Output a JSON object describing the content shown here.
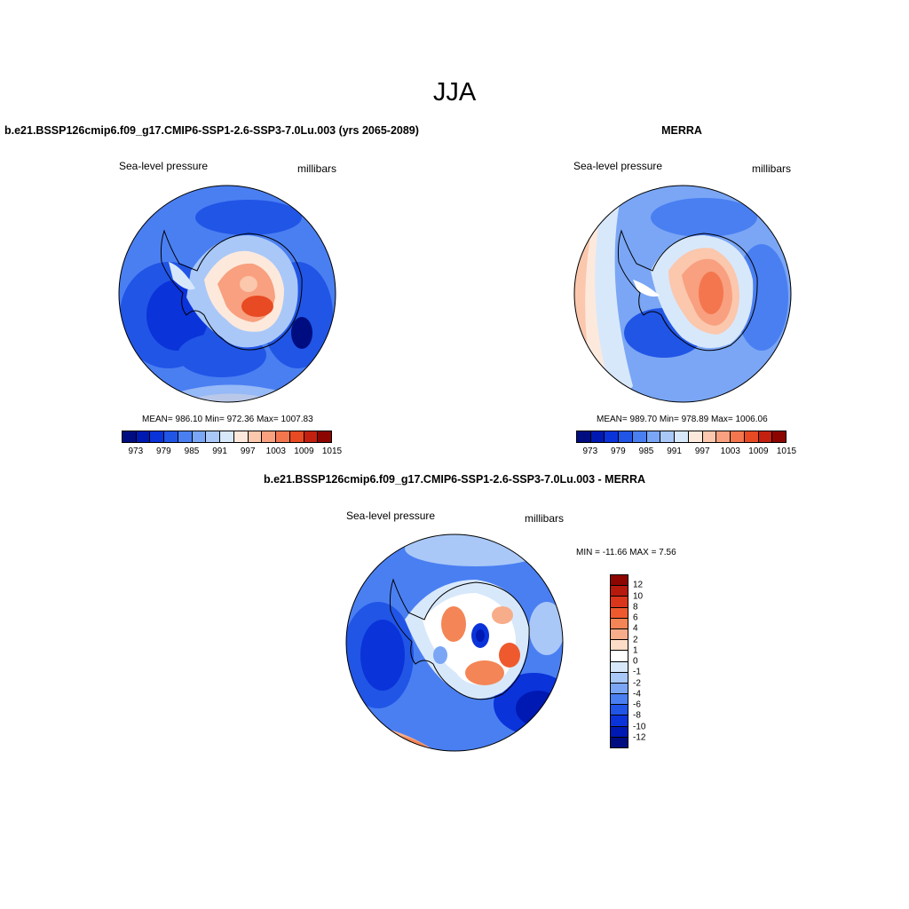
{
  "title": "JJA",
  "panels": [
    {
      "title": "b.e21.BSSP126cmip6.f09_g17.CMIP6-SSP1-2.6-SSP3-7.0Lu.003 (yrs 2065-2089)",
      "left_label": "Sea-level pressure",
      "right_label": "millibars",
      "stats": "MEAN= 986.10  Min= 972.36  Max= 1007.83",
      "colorbar_ticks": [
        "973",
        "979",
        "985",
        "991",
        "997",
        "1003",
        "1009",
        "1015"
      ]
    },
    {
      "title": "MERRA",
      "left_label": "Sea-level pressure",
      "right_label": "millibars",
      "stats": "MEAN= 989.70  Min= 978.89  Max= 1006.06",
      "colorbar_ticks": [
        "973",
        "979",
        "985",
        "991",
        "997",
        "1003",
        "1009",
        "1015"
      ]
    },
    {
      "title": "b.e21.BSSP126cmip6.f09_g17.CMIP6-SSP1-2.6-SSP3-7.0Lu.003 - MERRA",
      "left_label": "Sea-level pressure",
      "right_label": "millibars",
      "stats": "MIN = -11.66 MAX =   7.56",
      "colorbar_ticks": [
        "12",
        "10",
        "8",
        "6",
        "4",
        "2",
        "1",
        "0",
        "-1",
        "-2",
        "-4",
        "-6",
        "-8",
        "-10",
        "-12"
      ]
    }
  ],
  "colors": {
    "abs_scale": [
      "#000d80",
      "#0019b3",
      "#0a33d9",
      "#2155e6",
      "#4a7ff2",
      "#7aa6f5",
      "#a9c8f8",
      "#d8e8fb",
      "#fde9dc",
      "#fbc7ad",
      "#f8a07f",
      "#f4764f",
      "#e84a23",
      "#c42010",
      "#8c0500"
    ],
    "diff_scale": [
      "#8c0500",
      "#b51a0d",
      "#d9361b",
      "#ee5a2e",
      "#f48556",
      "#f7ad8a",
      "#fcdcc6",
      "#ffffff",
      "#d8e8fb",
      "#a9c8f8",
      "#7aa6f5",
      "#4a7ff2",
      "#2155e6",
      "#0a33d9",
      "#0019b3",
      "#000d80"
    ]
  }
}
